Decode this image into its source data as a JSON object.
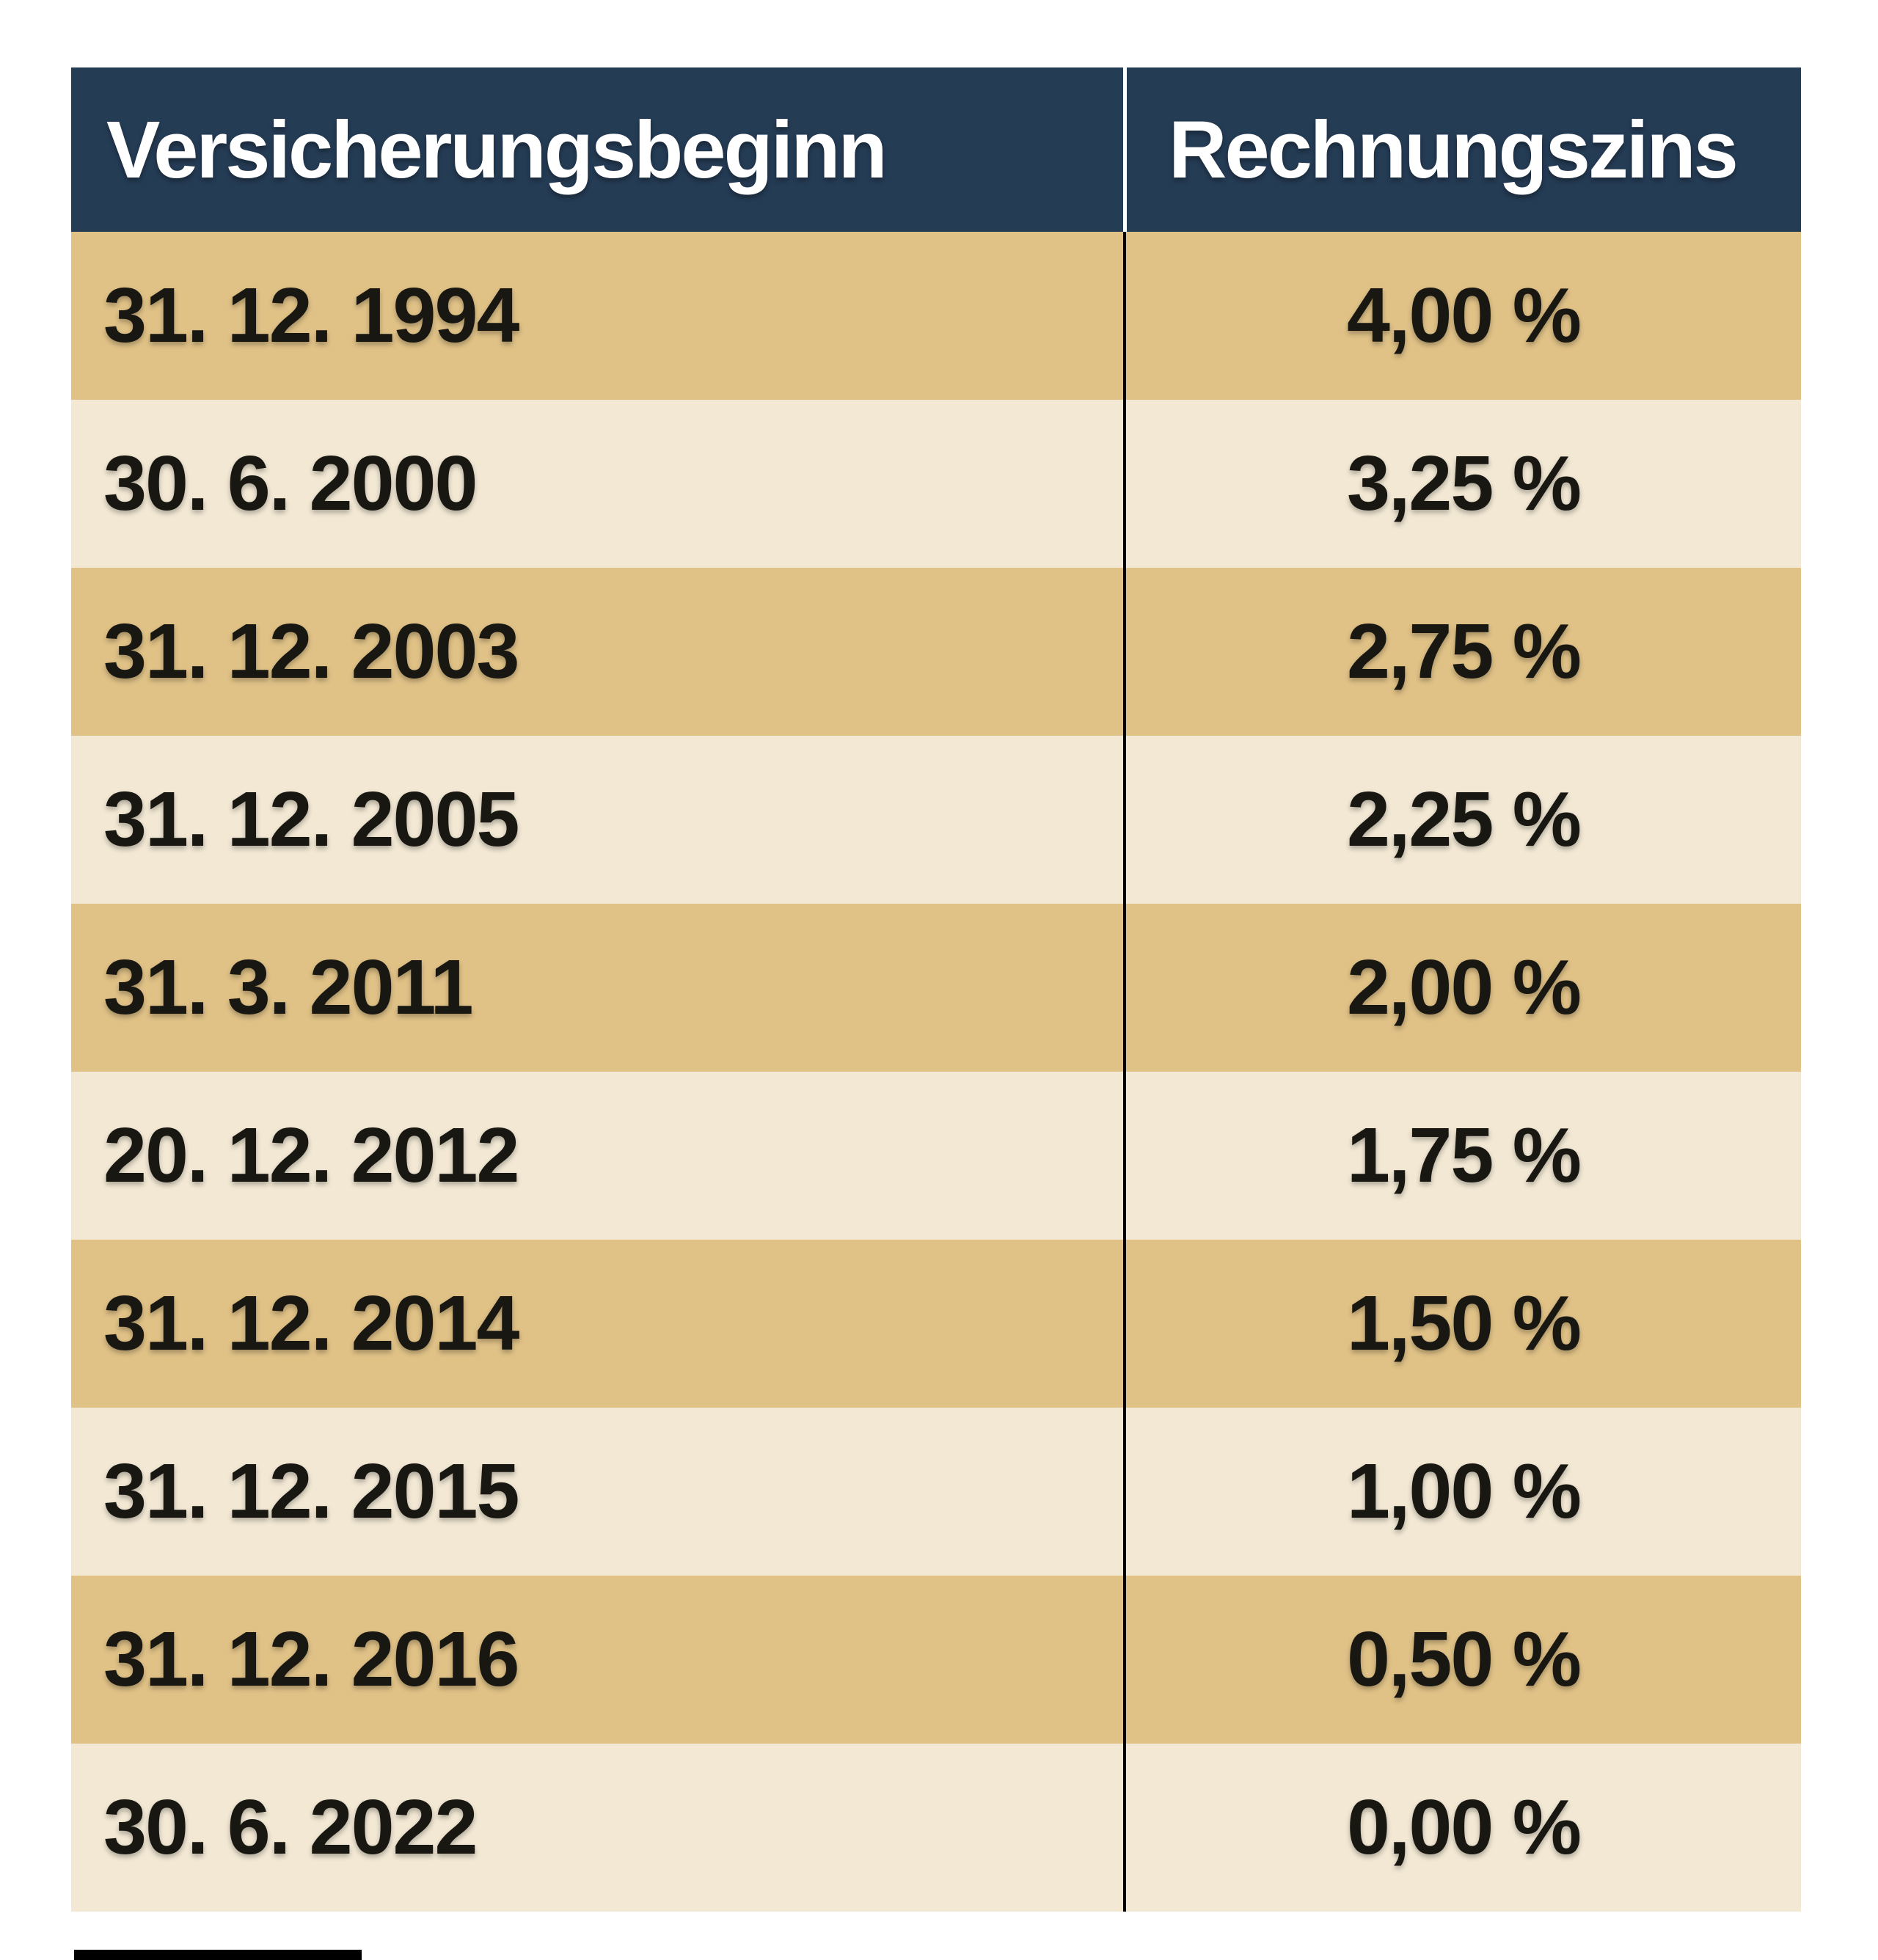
{
  "chart_data": {
    "type": "table",
    "columns": [
      "Versicherungsbeginn",
      "Rechnungszins"
    ],
    "rows": [
      [
        "31. 12. 1994",
        "4,00 %"
      ],
      [
        "30. 6. 2000",
        "3,25 %"
      ],
      [
        "31. 12. 2003",
        "2,75 %"
      ],
      [
        "31. 12. 2005",
        "2,25 %"
      ],
      [
        "31. 3. 2011",
        "2,00 %"
      ],
      [
        "20. 12. 2012",
        "1,75 %"
      ],
      [
        "31. 12. 2014",
        "1,50 %"
      ],
      [
        "31. 12. 2015",
        "1,00 %"
      ],
      [
        "31. 12. 2016",
        "0,50 %"
      ],
      [
        "30. 6. 2022",
        "0,00 %"
      ]
    ]
  },
  "table": {
    "header": {
      "col1": "Versicherungsbeginn",
      "col2": "Rechnungszins"
    },
    "rows": [
      {
        "date": "31. 12. 1994",
        "rate": "4,00 %"
      },
      {
        "date": "30. 6. 2000",
        "rate": "3,25 %"
      },
      {
        "date": "31. 12. 2003",
        "rate": "2,75 %"
      },
      {
        "date": "31. 12. 2005",
        "rate": "2,25 %"
      },
      {
        "date": "31. 3. 2011",
        "rate": "2,00 %"
      },
      {
        "date": "20. 12. 2012",
        "rate": "1,75 %"
      },
      {
        "date": "31. 12. 2014",
        "rate": "1,50 %"
      },
      {
        "date": "31. 12. 2015",
        "rate": "1,00 %"
      },
      {
        "date": "31. 12. 2016",
        "rate": "0,50 %"
      },
      {
        "date": "30. 6. 2022",
        "rate": "0,00 %"
      }
    ]
  },
  "colors": {
    "page_bg": "#FFFFFF",
    "header_bg": "#253C55",
    "header_text": "#FFFFFF",
    "row_tan": "#E0C287",
    "row_cream": "#F2E8D4",
    "body_text": "#181712",
    "divider_header": "#FFFFFF",
    "divider_body": "#000000",
    "footer_bar": "#000000"
  }
}
